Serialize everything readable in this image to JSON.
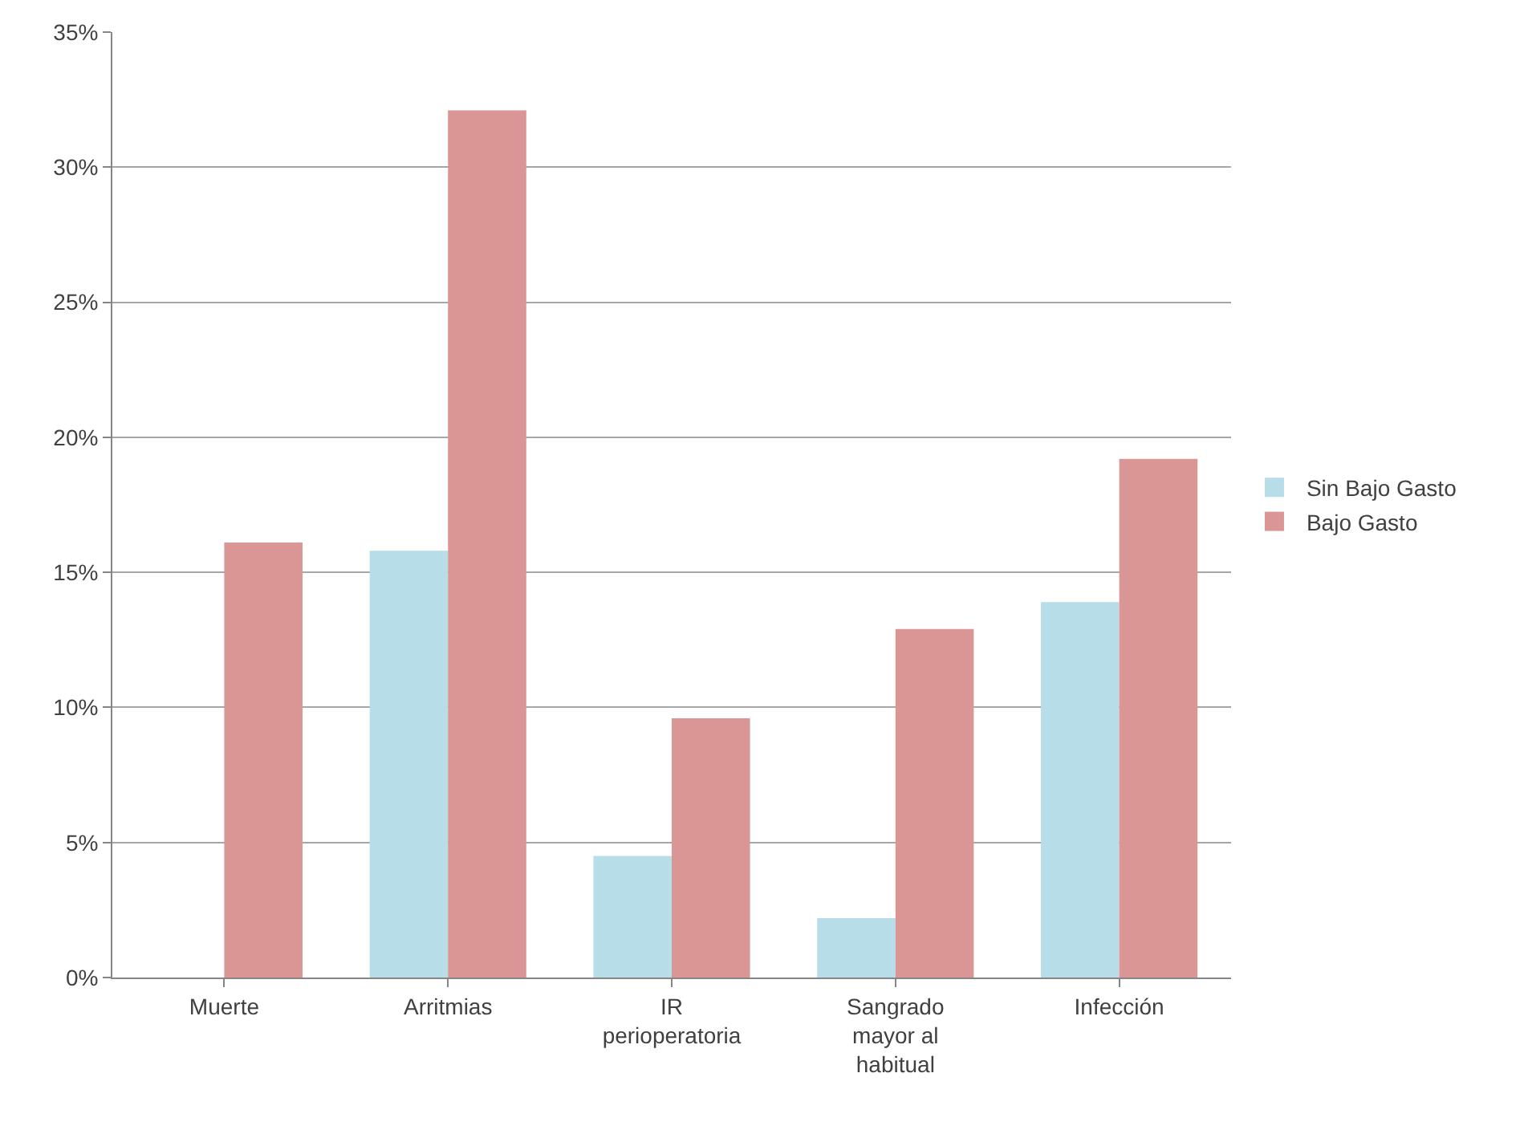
{
  "chart_data": {
    "type": "bar",
    "categories": [
      "Muerte",
      "Arritmias",
      "IR\nperioperatoria",
      "Sangrado\nmayor al\nhabitual",
      "Infección"
    ],
    "series": [
      {
        "name": "Sin Bajo Gasto",
        "color": "#b7dde8",
        "values": [
          0,
          15.8,
          4.5,
          2.2,
          13.9
        ]
      },
      {
        "name": "Bajo Gasto",
        "color": "#d99694",
        "values": [
          16.1,
          32.1,
          9.6,
          12.9,
          19.2
        ]
      }
    ],
    "ylim": [
      0,
      35
    ],
    "yticks": [
      {
        "value": 0,
        "label": "0%"
      },
      {
        "value": 5,
        "label": "5%"
      },
      {
        "value": 10,
        "label": "10%"
      },
      {
        "value": 15,
        "label": "15%"
      },
      {
        "value": 20,
        "label": "20%"
      },
      {
        "value": 25,
        "label": "25%"
      },
      {
        "value": 30,
        "label": "30%"
      },
      {
        "value": 35,
        "label": "35%"
      }
    ],
    "grid": "y",
    "legend": "right"
  }
}
